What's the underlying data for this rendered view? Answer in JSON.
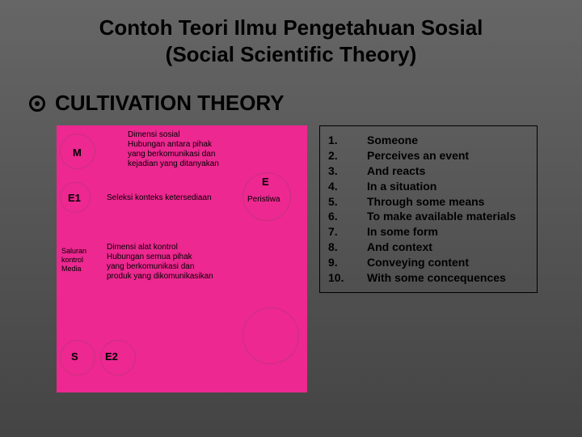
{
  "title_line1": "Contoh Teori Ilmu Pengetahuan Sosial",
  "title_line2": "(Social Scientific Theory)",
  "heading": "CULTIVATION THEORY",
  "diagram": {
    "labels": {
      "m": "M",
      "e1": "E1",
      "e": "E",
      "peristiwa": "Peristiwa",
      "s": "S",
      "e2": "E2",
      "vertical_label": "Saluran\nkontrol\nMedia"
    },
    "texts": {
      "top_block": "Dimensi sosial\nHubungan antara pihak\nyang berkomunikasi dan\nkejadian yang ditanyakan",
      "mid_block": "Seleksi konteks ketersediaan",
      "low_block": "Dimensi alat kontrol\nHubungan semua pihak\nyang berkomunikasi dan\nproduk yang dikomunikasikan"
    },
    "bg_color": "#ed2890"
  },
  "list": [
    {
      "n": "1.",
      "t": "Someone"
    },
    {
      "n": "2.",
      "t": "Perceives an event"
    },
    {
      "n": "3.",
      "t": "And reacts"
    },
    {
      "n": "4.",
      "t": "In a situation"
    },
    {
      "n": "5.",
      "t": "Through some means"
    },
    {
      "n": "6.",
      "t": "To make available materials"
    },
    {
      "n": "7.",
      "t": "In some form"
    },
    {
      "n": "8.",
      "t": "And context"
    },
    {
      "n": "9.",
      "t": "Conveying content"
    },
    {
      "n": "10.",
      "t": "With some concequences"
    }
  ],
  "colors": {
    "text_black": "#000000",
    "slide_bg_top": "#666666",
    "slide_bg_bottom": "#444444"
  }
}
